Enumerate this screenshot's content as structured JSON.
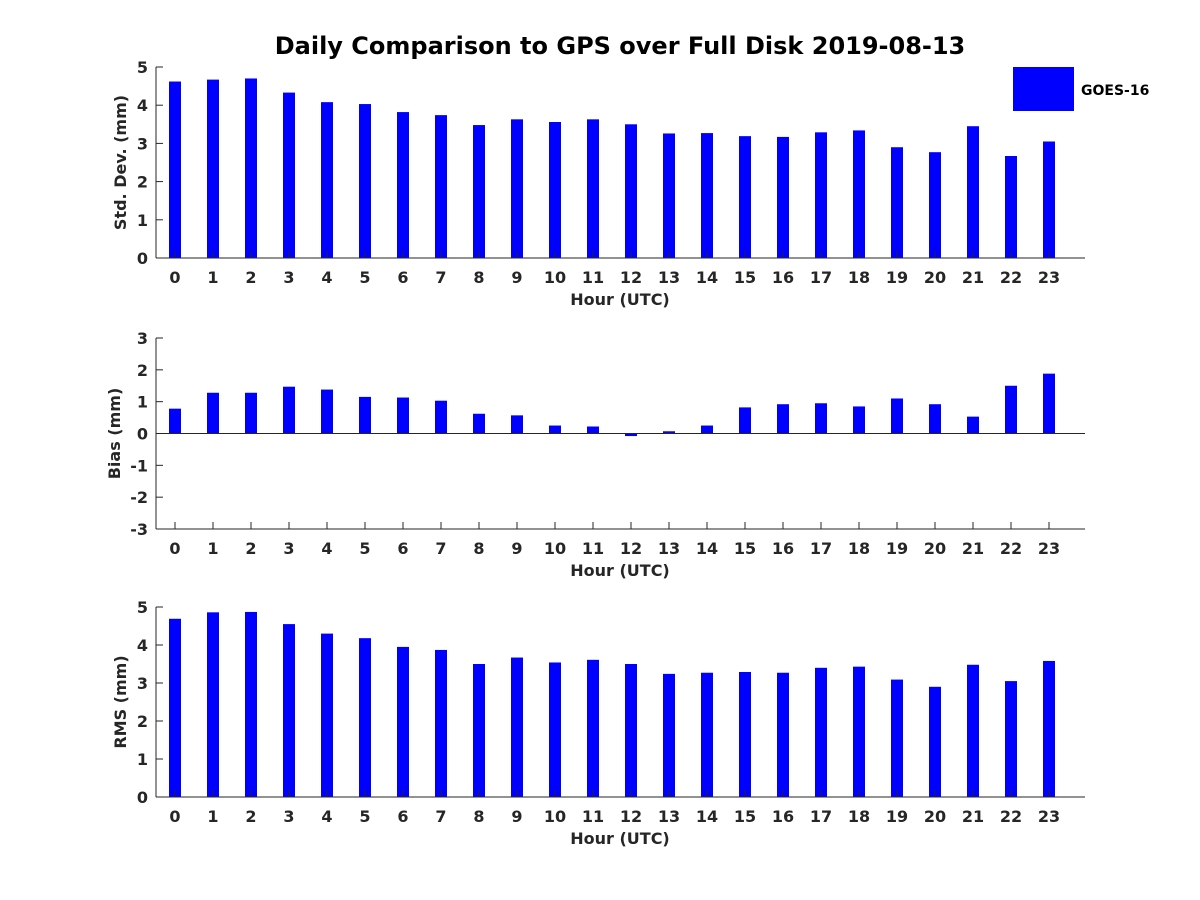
{
  "title": "Daily Comparison to GPS over Full Disk 2019-08-13",
  "legend": {
    "label": "GOES-16",
    "placement": "top-right",
    "color": "#0000ff"
  },
  "chart_data": [
    {
      "type": "bar",
      "categories": [
        "0",
        "1",
        "2",
        "3",
        "4",
        "5",
        "6",
        "7",
        "8",
        "9",
        "10",
        "11",
        "12",
        "13",
        "14",
        "15",
        "16",
        "17",
        "18",
        "19",
        "20",
        "21",
        "22",
        "23"
      ],
      "series": [
        {
          "name": "GOES-16",
          "values": [
            4.62,
            4.67,
            4.7,
            4.33,
            4.08,
            4.03,
            3.82,
            3.74,
            3.48,
            3.63,
            3.56,
            3.63,
            3.5,
            3.26,
            3.27,
            3.19,
            3.17,
            3.29,
            3.34,
            2.9,
            2.77,
            3.45,
            2.67,
            3.05
          ]
        }
      ],
      "xlabel": "Hour (UTC)",
      "ylabel": "Std. Dev. (mm)",
      "ylim": [
        0,
        5
      ],
      "yticks": [
        "0",
        "1",
        "2",
        "3",
        "4",
        "5"
      ],
      "grid": false
    },
    {
      "type": "bar",
      "categories": [
        "0",
        "1",
        "2",
        "3",
        "4",
        "5",
        "6",
        "7",
        "8",
        "9",
        "10",
        "11",
        "12",
        "13",
        "14",
        "15",
        "16",
        "17",
        "18",
        "19",
        "20",
        "21",
        "22",
        "23"
      ],
      "series": [
        {
          "name": "GOES-16",
          "values": [
            0.78,
            1.28,
            1.28,
            1.47,
            1.38,
            1.15,
            1.13,
            1.03,
            0.62,
            0.57,
            0.25,
            0.22,
            -0.08,
            0.07,
            0.25,
            0.82,
            0.92,
            0.95,
            0.85,
            1.1,
            0.92,
            0.53,
            1.5,
            1.88
          ]
        }
      ],
      "xlabel": "Hour (UTC)",
      "ylabel": "Bias (mm)",
      "ylim": [
        -3,
        3
      ],
      "yticks": [
        "-3",
        "-2",
        "-1",
        "0",
        "1",
        "2",
        "3"
      ],
      "grid": false
    },
    {
      "type": "bar",
      "categories": [
        "0",
        "1",
        "2",
        "3",
        "4",
        "5",
        "6",
        "7",
        "8",
        "9",
        "10",
        "11",
        "12",
        "13",
        "14",
        "15",
        "16",
        "17",
        "18",
        "19",
        "20",
        "21",
        "22",
        "23"
      ],
      "series": [
        {
          "name": "GOES-16",
          "values": [
            4.69,
            4.86,
            4.87,
            4.55,
            4.3,
            4.18,
            3.95,
            3.87,
            3.5,
            3.67,
            3.54,
            3.61,
            3.5,
            3.24,
            3.27,
            3.29,
            3.27,
            3.4,
            3.43,
            3.09,
            2.9,
            3.48,
            3.05,
            3.58
          ]
        }
      ],
      "xlabel": "Hour (UTC)",
      "ylabel": "RMS (mm)",
      "ylim": [
        0,
        5
      ],
      "yticks": [
        "0",
        "1",
        "2",
        "3",
        "4",
        "5"
      ],
      "grid": false
    }
  ]
}
